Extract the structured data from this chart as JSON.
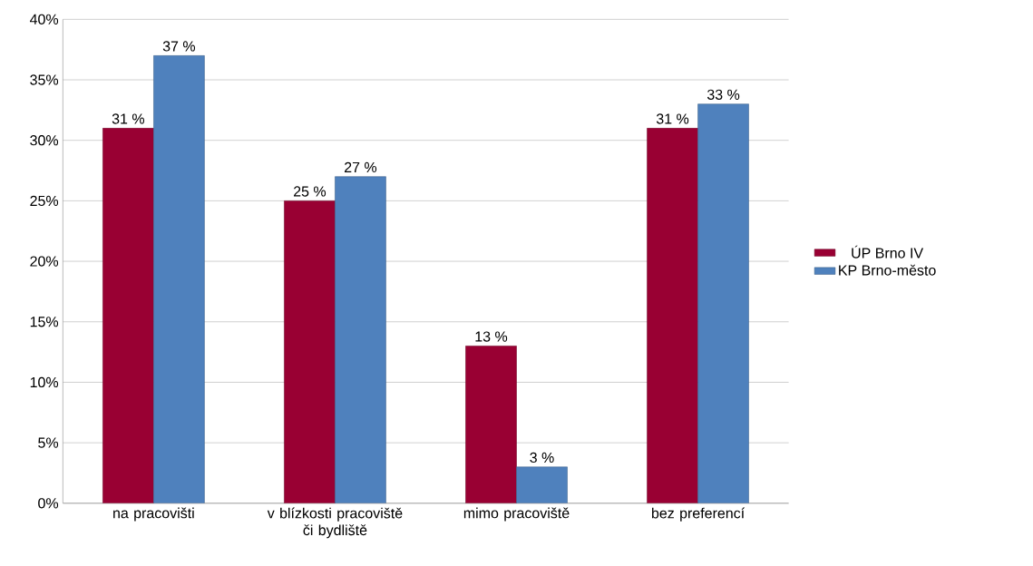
{
  "chart_data": {
    "type": "bar",
    "categories": [
      "na pracovišti",
      "v blízkosti pracoviště či bydliště",
      "mimo pracoviště",
      "bez preferencí"
    ],
    "series": [
      {
        "name": "ÚP Brno IV",
        "color": "#990033",
        "values": [
          31,
          25,
          13,
          31
        ],
        "value_labels": [
          "31 %",
          "25 %",
          "13 %",
          "31 %"
        ]
      },
      {
        "name": "KP Brno-město",
        "color": "#4f81bd",
        "values": [
          37,
          27,
          3,
          33
        ],
        "value_labels": [
          "37 %",
          "27 %",
          "3 %",
          "33 %"
        ]
      }
    ],
    "ylim": [
      0,
      40
    ],
    "yticks": [
      {
        "value": 0,
        "label": "0%"
      },
      {
        "value": 5,
        "label": "5%"
      },
      {
        "value": 10,
        "label": "10%"
      },
      {
        "value": 15,
        "label": "15%"
      },
      {
        "value": 20,
        "label": "20%"
      },
      {
        "value": 25,
        "label": "25%"
      },
      {
        "value": 30,
        "label": "30%"
      },
      {
        "value": 35,
        "label": "35%"
      },
      {
        "value": 40,
        "label": "40%"
      }
    ],
    "grid": "y",
    "legend": "right"
  }
}
